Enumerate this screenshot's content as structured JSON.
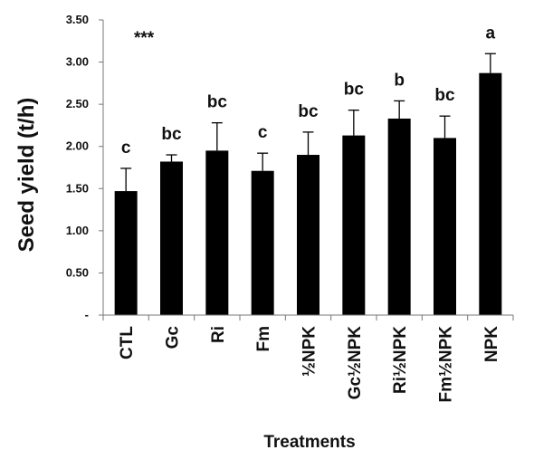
{
  "chart_data": {
    "type": "bar",
    "xlabel": "Treatments",
    "ylabel": "Seed yield (t/h)",
    "annotation": "***",
    "ylim": [
      0,
      3.5
    ],
    "yticks": [
      0,
      0.5,
      1.0,
      1.5,
      2.0,
      2.5,
      3.0,
      3.5
    ],
    "ytick_labels": [
      "-",
      "0.50",
      "1.00",
      "1.50",
      "2.00",
      "2.50",
      "3.00",
      "3.50"
    ],
    "grid": false,
    "bar_color": "#000000",
    "categories": [
      "CTL",
      "Gc",
      "Ri",
      "Fm",
      "½NPK",
      "Gc½NPK",
      "Ri½NPK",
      "Fm½NPK",
      "NPK"
    ],
    "values": [
      1.47,
      1.82,
      1.95,
      1.71,
      1.9,
      2.13,
      2.33,
      2.1,
      2.87
    ],
    "errors": [
      0.27,
      0.08,
      0.33,
      0.21,
      0.27,
      0.3,
      0.21,
      0.26,
      0.23
    ],
    "significance": [
      "c",
      "bc",
      "bc",
      "c",
      "bc",
      "bc",
      "b",
      "bc",
      "a"
    ]
  }
}
